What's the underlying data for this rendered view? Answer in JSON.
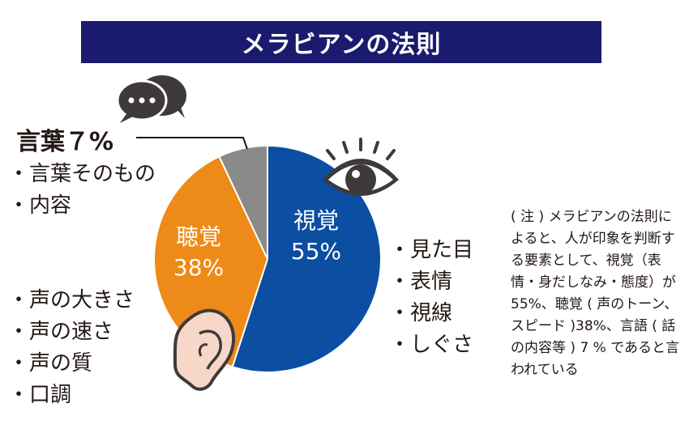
{
  "title": "メラビアンの法則",
  "chart_data": {
    "type": "pie",
    "slices": [
      {
        "label": "視覚",
        "value": 55,
        "value_label": "55%",
        "color": "#0b4ea2",
        "text_color": "#ffffff"
      },
      {
        "label": "聴覚",
        "value": 38,
        "value_label": "38%",
        "color": "#ee8a17",
        "text_color": "#ffffff"
      },
      {
        "label": "言葉",
        "value": 7,
        "value_label": "",
        "color": "#8a8a8a",
        "text_color": "#ffffff"
      }
    ]
  },
  "verbal": {
    "heading": "言葉７%",
    "items": [
      "言葉そのもの",
      "内容"
    ]
  },
  "visual": {
    "items": [
      "見た目",
      "表情",
      "視線",
      "しぐさ"
    ]
  },
  "vocal": {
    "items": [
      "声の大きさ",
      "声の速さ",
      "声の質",
      "口調"
    ]
  },
  "note": "( 注 ) メラビアンの法則によると、人が印象を判断する要素として、視覚（表情・身だしなみ・態度）が 55%、聴覚 ( 声のトーン、スピード )38%、言語 ( 話の内容等 ) 7 % であると言われている",
  "icons": {
    "speech": "speech-bubbles-icon",
    "eye": "eye-icon",
    "ear": "ear-icon"
  }
}
